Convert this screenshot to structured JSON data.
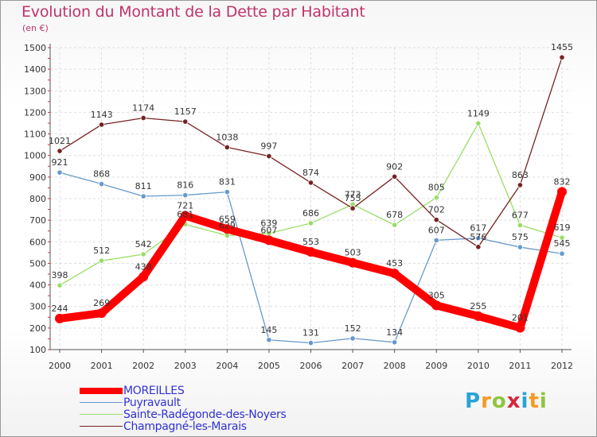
{
  "title": "Evolution du Montant de la Dette par Habitant",
  "subtitle": "(en €)",
  "brand": [
    "P",
    "r",
    "o",
    "x",
    "i",
    "t",
    "i"
  ],
  "brand_colors": [
    "#2aa3d6",
    "#f59a23",
    "#8dc63f",
    "#d7263d",
    "#2aa3d6",
    "#f59a23",
    "#8dc63f"
  ],
  "chart_data": {
    "type": "line",
    "x": [
      "2000",
      "2001",
      "2002",
      "2003",
      "2004",
      "2005",
      "2006",
      "2007",
      "2008",
      "2009",
      "2010",
      "2011",
      "2012"
    ],
    "ylim": [
      100,
      1500
    ],
    "yticks": [
      100,
      200,
      300,
      400,
      500,
      600,
      700,
      800,
      900,
      1000,
      1100,
      1200,
      1300,
      1400,
      1500
    ],
    "grid": true,
    "series": [
      {
        "name": "MOREILLES",
        "color": "#ff0000",
        "values": [
          244,
          269,
          438,
          721,
          659,
          607,
          553,
          503,
          453,
          305,
          255,
          201,
          832
        ],
        "labels": [
          "244",
          "269",
          "438",
          "721",
          "659",
          "607",
          "553",
          "503",
          "453",
          "305",
          "255",
          "201",
          "832"
        ]
      },
      {
        "name": "Puyravault",
        "color": "#6699cc",
        "values": [
          921,
          868,
          811,
          816,
          831,
          145,
          131,
          152,
          134,
          607,
          617,
          575,
          545
        ],
        "labels": [
          "921",
          "868",
          "811",
          "816",
          "831",
          "145",
          "131",
          "152",
          "134",
          "607",
          "617",
          "575",
          "545"
        ]
      },
      {
        "name": "Sainte-Radégonde-des-Noyers",
        "color": "#99dd66",
        "values": [
          398,
          512,
          542,
          681,
          629,
          639,
          686,
          773,
          678,
          805,
          1149,
          677,
          619
        ],
        "labels": [
          "398",
          "512",
          "542",
          "681",
          "629",
          "639",
          "686",
          "773",
          "678",
          "805",
          "1149",
          "677",
          "619"
        ]
      },
      {
        "name": "Champagné-les-Marais",
        "color": "#772222",
        "values": [
          1021,
          1143,
          1174,
          1157,
          1038,
          997,
          874,
          755,
          902,
          702,
          576,
          863,
          1455
        ],
        "labels": [
          "1021",
          "1143",
          "1174",
          "1157",
          "1038",
          "997",
          "874",
          "755",
          "902",
          "702",
          "576",
          "863",
          "1455"
        ]
      }
    ]
  }
}
